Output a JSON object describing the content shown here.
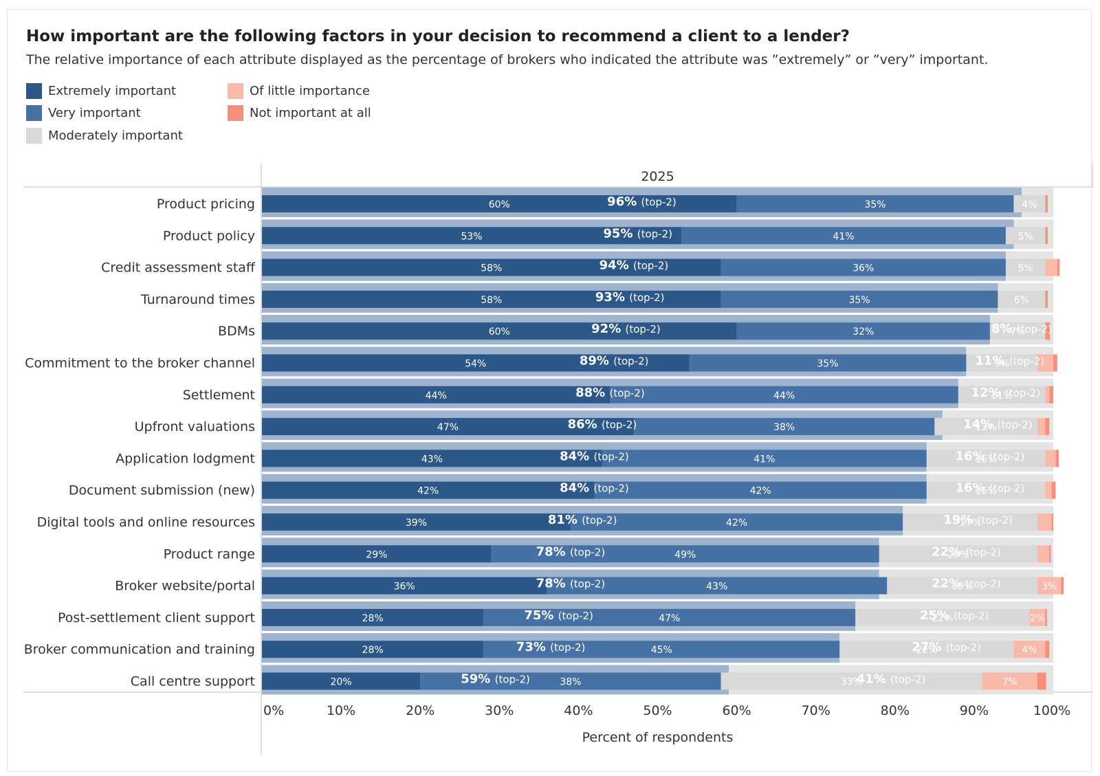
{
  "title": "How important are the following factors in your decision to recommend a client to a lender?",
  "subtitle": "The relative importance of each attribute displayed as the percentage of brokers who indicated the attribute was ”extremely” or ”very” important.",
  "legend": [
    {
      "label": "Extremely important",
      "color": "#2b5888"
    },
    {
      "label": "Very important",
      "color": "#4671a5"
    },
    {
      "label": "Moderately important",
      "color": "#d9d9d9"
    },
    {
      "label": "Of little importance",
      "color": "#fbb9aa"
    },
    {
      "label": "Not important at all",
      "color": "#f6907a"
    }
  ],
  "chart_data": {
    "type": "bar",
    "orientation": "horizontal",
    "stacked": true,
    "column_header": "2025",
    "xlabel": "Percent of respondents",
    "xlim": [
      0,
      100
    ],
    "xticks": [
      "0%",
      "10%",
      "20%",
      "30%",
      "40%",
      "50%",
      "60%",
      "70%",
      "80%",
      "90%",
      "100%"
    ],
    "top2_suffix": "(top-2)",
    "categories": [
      "Product pricing",
      "Product policy",
      "Credit assessment staff",
      "Turnaround times",
      "BDMs",
      "Commitment to the broker channel",
      "Settlement",
      "Upfront valuations",
      "Application lodgment",
      "Document submission (new)",
      "Digital tools and online resources",
      "Product range",
      "Broker website/portal",
      "Post-settlement client support",
      "Broker communication and training",
      "Call centre support"
    ],
    "series": [
      {
        "name": "Extremely important",
        "values": [
          60,
          53,
          58,
          58,
          60,
          54,
          44,
          47,
          43,
          42,
          39,
          29,
          36,
          28,
          28,
          20
        ]
      },
      {
        "name": "Very important",
        "values": [
          35,
          41,
          36,
          35,
          32,
          35,
          44,
          38,
          41,
          42,
          42,
          49,
          43,
          47,
          45,
          38
        ]
      },
      {
        "name": "Moderately important",
        "values": [
          4,
          5,
          5,
          6,
          7,
          9,
          11,
          13,
          15,
          15,
          17,
          20,
          19,
          22,
          22,
          33
        ]
      },
      {
        "name": "Of little importance",
        "values": [
          0,
          0,
          1.5,
          0,
          0,
          2,
          0.5,
          1,
          1.3,
          0.8,
          1.8,
          1.5,
          3,
          2,
          4,
          7
        ]
      },
      {
        "name": "Not important at all",
        "values": [
          0.3,
          0.3,
          0.3,
          0.3,
          0.6,
          0.5,
          0.5,
          0.5,
          0.4,
          0.5,
          0.2,
          0.2,
          0.3,
          0.2,
          0.5,
          1.1
        ]
      }
    ],
    "top2_values": [
      96,
      95,
      94,
      93,
      92,
      89,
      88,
      86,
      84,
      84,
      81,
      78,
      78,
      75,
      73,
      59
    ],
    "bottom3_values": [
      4,
      5,
      6,
      7,
      8,
      11,
      12,
      14,
      16,
      16,
      19,
      22,
      22,
      25,
      27,
      41
    ],
    "segment_labels": [
      [
        "60%",
        "35%",
        "4%",
        "",
        ""
      ],
      [
        "53%",
        "41%",
        "5%",
        "",
        ""
      ],
      [
        "58%",
        "36%",
        "5%",
        "",
        ""
      ],
      [
        "58%",
        "35%",
        "6%",
        "",
        ""
      ],
      [
        "60%",
        "32%",
        "7%",
        "",
        ""
      ],
      [
        "54%",
        "35%",
        "9%",
        "",
        ""
      ],
      [
        "44%",
        "44%",
        "11%",
        "",
        ""
      ],
      [
        "47%",
        "38%",
        "13%",
        "",
        ""
      ],
      [
        "43%",
        "41%",
        "15%",
        "",
        ""
      ],
      [
        "42%",
        "42%",
        "15%",
        "",
        ""
      ],
      [
        "39%",
        "42%",
        "17%",
        "",
        ""
      ],
      [
        "29%",
        "49%",
        "20%",
        "",
        ""
      ],
      [
        "36%",
        "43%",
        "19%",
        "3%",
        ""
      ],
      [
        "28%",
        "47%",
        "22%",
        "2%",
        ""
      ],
      [
        "28%",
        "45%",
        "22%",
        "4%",
        ""
      ],
      [
        "20%",
        "38%",
        "33%",
        "7%",
        ""
      ]
    ],
    "colors": {
      "extremely": "#2b5888",
      "very": "#4671a5",
      "moderately": "#d9d9d9",
      "little": "#fbb9aa",
      "not": "#f6907a",
      "top2_back": "#9eb4ce",
      "rest_back": "#e4e4e4"
    }
  }
}
